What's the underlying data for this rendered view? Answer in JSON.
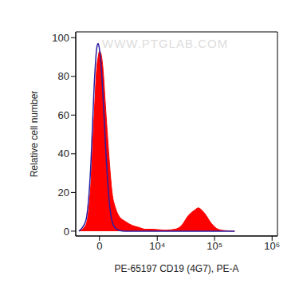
{
  "chart_data": {
    "type": "histogram",
    "annotation": "WWW.PTGLAB.COM",
    "x_label": "PE-65197 CD19 (4G7), PE-A",
    "y_label": "Relative cell number",
    "x": [
      -1840,
      -1170,
      -700,
      -430,
      -212,
      -106,
      0,
      106,
      266,
      481,
      760,
      1050,
      1370,
      1700,
      2460,
      3420,
      4560,
      6100,
      8000,
      13700,
      20500,
      26800,
      34900,
      45600,
      51900,
      59400,
      68000,
      88200,
      115000,
      150000,
      224000
    ],
    "series": [
      {
        "type": "area",
        "color": "#ff0000",
        "values": [
          0,
          3,
          25,
          60,
          85,
          90,
          93,
          92,
          85,
          65,
          40,
          20,
          12,
          8,
          5,
          3,
          2,
          1,
          1,
          0.5,
          1,
          3,
          8,
          11,
          12,
          11,
          9,
          4,
          1,
          0.3,
          0
        ]
      },
      {
        "type": "line",
        "color": "#2a1fa0",
        "values": [
          0,
          5,
          35,
          75,
          95,
          97,
          94,
          88,
          72,
          45,
          18,
          5,
          1.5,
          0.5,
          0,
          0,
          0,
          0,
          0,
          0,
          0,
          0,
          0,
          0,
          0,
          0,
          0,
          0,
          0,
          0,
          0
        ]
      }
    ],
    "log": "x",
    "xlim": [
      -2200,
      1240000
    ],
    "xticks": [
      0,
      {
        "value": 10000,
        "label": "10⁴"
      },
      {
        "value": 100000,
        "label": "10⁵"
      },
      {
        "value": 1000000,
        "label": "10⁶"
      }
    ],
    "ylim": [
      -2.5,
      103
    ],
    "yticks": [
      0,
      20,
      40,
      60,
      80,
      100
    ]
  }
}
